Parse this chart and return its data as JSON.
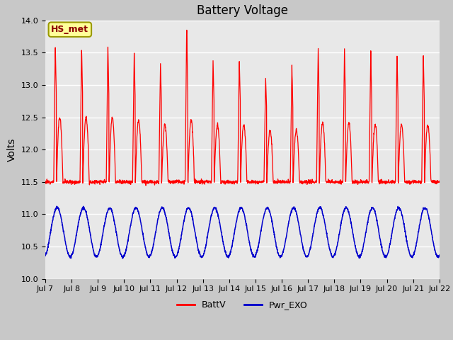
{
  "title": "Battery Voltage",
  "ylabel": "Volts",
  "ylim": [
    10.0,
    14.0
  ],
  "yticks": [
    10.0,
    10.5,
    11.0,
    11.5,
    12.0,
    12.5,
    13.0,
    13.5,
    14.0
  ],
  "x_tick_labels": [
    "Jul 7",
    "Jul 8",
    "Jul 9",
    "Jul 10",
    "Jul 11",
    "Jul 12",
    "Jul 13",
    "Jul 14",
    "Jul 15",
    "Jul 16",
    "Jul 17",
    "Jul 18",
    "Jul 19",
    "Jul 20",
    "Jul 21",
    "Jul 22"
  ],
  "fig_bg_color": "#c8c8c8",
  "plot_bg_color": "#e8e8e8",
  "red_line_color": "#ff0000",
  "blue_line_color": "#0000cc",
  "legend_labels": [
    "BattV",
    "Pwr_EXO"
  ],
  "annotation_text": "HS_met",
  "annotation_bg": "#ffff99",
  "annotation_border": "#999900",
  "n_days": 15,
  "n_points_per_day": 144,
  "spike_heights": [
    13.62,
    13.6,
    13.62,
    13.55,
    13.35,
    13.95,
    13.42,
    13.42,
    13.15,
    13.35,
    13.6,
    13.6,
    13.52,
    13.5,
    13.5
  ],
  "secondary_bump_heights": [
    12.5,
    12.5,
    12.5,
    12.45,
    12.38,
    12.45,
    12.38,
    12.38,
    12.3,
    12.3,
    12.42,
    12.42,
    12.38,
    12.38,
    12.38
  ],
  "night_base": 11.5,
  "pwr_mid": 10.72,
  "pwr_amp": 0.38
}
